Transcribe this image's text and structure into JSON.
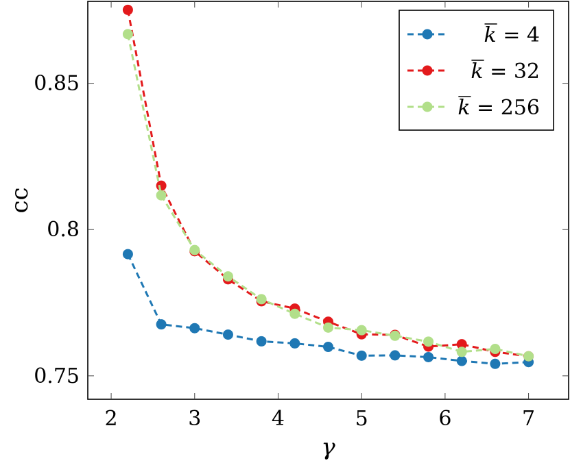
{
  "chart_data": {
    "type": "line",
    "xlabel": "γ",
    "ylabel": "cc",
    "xlim": [
      1.72,
      7.48
    ],
    "ylim": [
      0.742,
      0.878
    ],
    "xticks": [
      2,
      3,
      4,
      5,
      6,
      7
    ],
    "xtick_labels": [
      "2",
      "3",
      "4",
      "5",
      "6",
      "7"
    ],
    "yticks": [
      0.75,
      0.8,
      0.85
    ],
    "ytick_labels": [
      "0.75",
      "0.8",
      "0.85"
    ],
    "grid": false,
    "legend_position": "top-right",
    "x": [
      2.2,
      2.6,
      3.0,
      3.4,
      3.8,
      4.2,
      4.6,
      5.0,
      5.4,
      5.8,
      6.2,
      6.6,
      7.0
    ],
    "series": [
      {
        "name": "k̄ = 4",
        "label_prefix": "k",
        "label_suffix": " = 4",
        "color": "#1f78b4",
        "values": [
          0.7916,
          0.7676,
          0.7663,
          0.7641,
          0.7618,
          0.7611,
          0.7599,
          0.7569,
          0.757,
          0.7564,
          0.7551,
          0.7541,
          0.7547
        ]
      },
      {
        "name": "k̄ = 32",
        "label_prefix": "k",
        "label_suffix": " = 32",
        "color": "#e31a1c",
        "values": [
          0.8751,
          0.815,
          0.7926,
          0.783,
          0.7755,
          0.773,
          0.7685,
          0.7642,
          0.764,
          0.76,
          0.7608,
          0.7582,
          0.7567
        ]
      },
      {
        "name": "k̄ = 256",
        "label_prefix": "k",
        "label_suffix": " = 256",
        "color": "#b2df8a",
        "values": [
          0.8668,
          0.8117,
          0.793,
          0.784,
          0.7762,
          0.7712,
          0.7665,
          0.7656,
          0.7637,
          0.7617,
          0.7582,
          0.7592,
          0.7567
        ]
      }
    ]
  }
}
